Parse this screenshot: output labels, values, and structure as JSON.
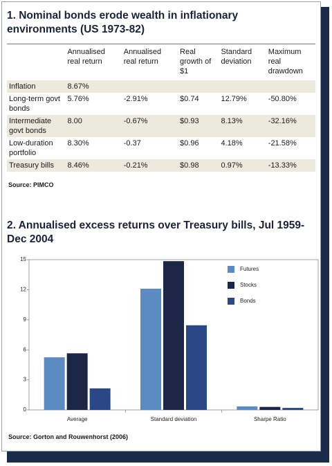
{
  "table": {
    "title": "1. Nominal bonds erode wealth in inflationary environments (US 1973-82)",
    "columns": [
      "Annualised real return",
      "Annualised real return",
      "Real growth of $1",
      "Standard deviation",
      "Maximum real drawdown"
    ],
    "rows": [
      [
        "Inflation",
        "8.67%"
      ],
      [
        "Long-term govt bonds",
        "5.76%",
        "-2.91%",
        "$0.74",
        "12.79%",
        "-50.80%"
      ],
      [
        "Intermediate govt bonds",
        "8.00",
        "-0.67%",
        "$0.93",
        "8.13%",
        "-32.16%"
      ],
      [
        "Low-duration portfolio",
        "8.30%",
        "-0.37",
        "$0.96",
        "4.18%",
        "-21.58%"
      ],
      [
        "Treasury bills",
        "8.46%",
        "-0.21%",
        "$0.98",
        "0.97%",
        "-13.33%"
      ]
    ],
    "source": "Source: PIMCO"
  },
  "chart_data": {
    "type": "bar",
    "title": "2. Annualised excess returns over Treasury bills, Jul 1959- Dec 2004",
    "categories": [
      "Average",
      "Standard deviation",
      "Sharpe Ratio"
    ],
    "series": [
      {
        "name": "Futures",
        "color": "#5b8bc1",
        "values": [
          5.25,
          12.1,
          0.35
        ]
      },
      {
        "name": "Stocks",
        "color": "#1c2748",
        "values": [
          5.65,
          14.85,
          0.3
        ]
      },
      {
        "name": "Bonds",
        "color": "#2b4886",
        "values": [
          2.15,
          8.45,
          0.2
        ]
      }
    ],
    "ylim": [
      0,
      15
    ],
    "yticks": [
      0,
      3,
      6,
      9,
      12,
      15
    ],
    "grid": false,
    "legend": "top-right",
    "source": "Source: Gorton and Rouwenhorst (2006)"
  }
}
